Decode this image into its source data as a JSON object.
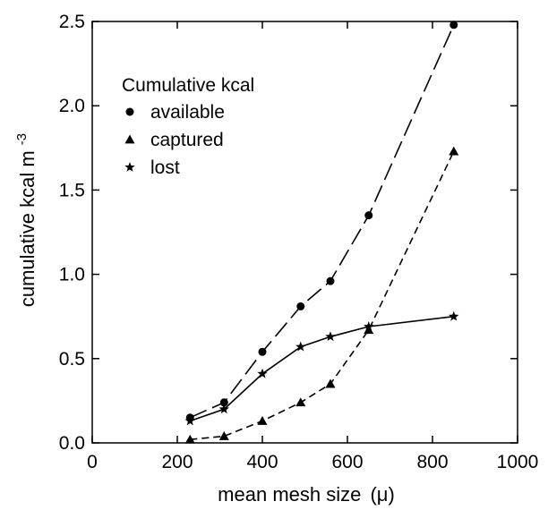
{
  "chart_data": {
    "type": "line",
    "xlabel": "mean mesh size",
    "xlabel_unit": "(μ)",
    "ylabel": "cumulative kcal m",
    "ylabel_exp": "-3",
    "xlim": [
      0,
      1000
    ],
    "ylim": [
      0,
      2.5
    ],
    "xticks": [
      0,
      200,
      400,
      600,
      800,
      1000
    ],
    "xtick_labels": [
      "0",
      "200",
      "400",
      "600",
      "800",
      "1000"
    ],
    "yticks": [
      0,
      0.5,
      1.0,
      1.5,
      2.0,
      2.5
    ],
    "ytick_labels": [
      "0.0",
      "0.5",
      "1.0",
      "1.5",
      "2.0",
      "2.5"
    ],
    "grid": false,
    "legend_title": "Cumulative kcal",
    "legend_position": "top-left",
    "series": [
      {
        "name": "available",
        "marker": "circle",
        "dash": "long-dash",
        "x": [
          230,
          310,
          400,
          490,
          560,
          650,
          850
        ],
        "y": [
          0.15,
          0.24,
          0.54,
          0.81,
          0.96,
          1.35,
          2.48
        ]
      },
      {
        "name": "captured",
        "marker": "triangle",
        "dash": "short-dash",
        "x": [
          230,
          310,
          400,
          490,
          560,
          650,
          850
        ],
        "y": [
          0.02,
          0.04,
          0.13,
          0.24,
          0.35,
          0.67,
          1.73
        ]
      },
      {
        "name": "lost",
        "marker": "star",
        "dash": "solid",
        "x": [
          230,
          310,
          400,
          490,
          560,
          650,
          850
        ],
        "y": [
          0.13,
          0.2,
          0.41,
          0.57,
          0.63,
          0.69,
          0.75
        ]
      }
    ]
  }
}
